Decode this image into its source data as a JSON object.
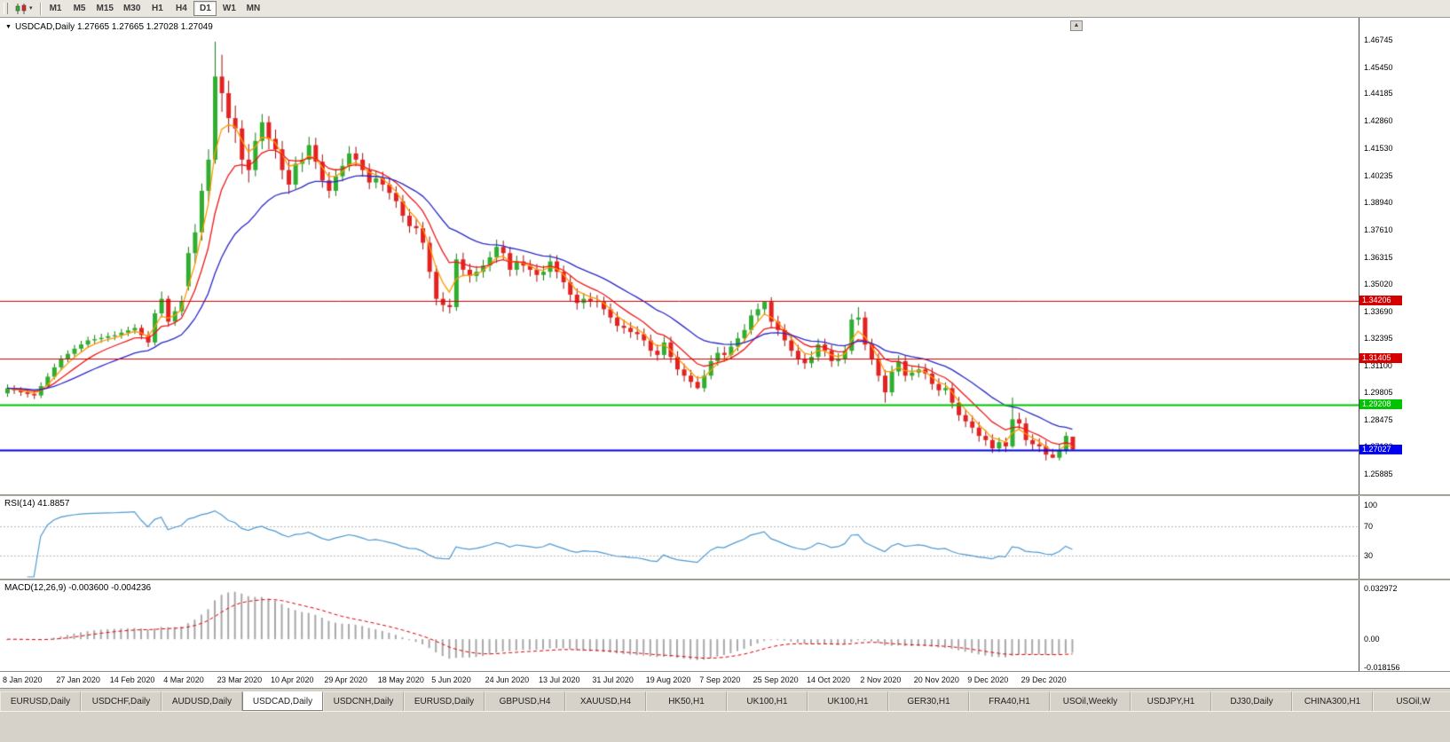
{
  "icons": {
    "dropdown_triangle": "▼",
    "caret_down": "▾",
    "scroll_up": "▲"
  },
  "toolbar": {
    "timeframes": [
      "M1",
      "M5",
      "M15",
      "M30",
      "H1",
      "H4",
      "D1",
      "W1",
      "MN"
    ],
    "active_timeframe": "D1"
  },
  "chart_header": {
    "title": "USDCAD,Daily 1.27665 1.27665 1.27028 1.27049"
  },
  "chart_data": {
    "type": "candlestick",
    "symbol": "USDCAD",
    "timeframe": "Daily",
    "last_ohlc": {
      "open": 1.27665,
      "high": 1.27665,
      "low": 1.27028,
      "close": 1.27049
    },
    "price_ticks": [
      "1.46745",
      "1.45450",
      "1.44185",
      "1.42860",
      "1.41530",
      "1.40235",
      "1.38940",
      "1.37610",
      "1.36315",
      "1.35020",
      "1.33690",
      "1.32395",
      "1.31100",
      "1.29805",
      "1.28475",
      "1.27180",
      "1.25885"
    ],
    "price_range": [
      1.251,
      1.4766
    ],
    "dates": [
      "8 Jan 2020",
      "27 Jan 2020",
      "14 Feb 2020",
      "4 Mar 2020",
      "23 Mar 2020",
      "10 Apr 2020",
      "29 Apr 2020",
      "18 May 2020",
      "5 Jun 2020",
      "24 Jun 2020",
      "13 Jul 2020",
      "31 Jul 2020",
      "19 Aug 2020",
      "7 Sep 2020",
      "25 Sep 2020",
      "14 Oct 2020",
      "2 Nov 2020",
      "20 Nov 2020",
      "9 Dec 2020",
      "29 Dec 2020"
    ],
    "colors": {
      "bull": "#2fae2f",
      "bear": "#e32222",
      "bull_wick": "#157a15",
      "bear_wick": "#9d0f0f"
    },
    "moving_averages": [
      {
        "name": "fast-ma",
        "period": 4,
        "color": "#ff9900"
      },
      {
        "name": "mid-ma",
        "period": 9,
        "color": "#f01818"
      },
      {
        "name": "slow-ma",
        "period": 21,
        "color": "#2a2ac8"
      }
    ],
    "horizontal_lines": [
      {
        "price": 1.34206,
        "label": "1.34206",
        "color": "#d40000",
        "width": 1
      },
      {
        "price": 1.31405,
        "label": "1.31405",
        "color": "#d40000",
        "width": 1
      },
      {
        "price": 1.29208,
        "label": "1.29208",
        "color": "#00c400",
        "width": 2
      },
      {
        "price": 1.27027,
        "label": "1.27027",
        "color": "#0000ee",
        "width": 2
      }
    ],
    "rsi": {
      "label": "RSI(14) 41.8857",
      "period": 14,
      "current": 41.8857,
      "levels": [
        "100",
        "70",
        "30"
      ],
      "level_values": [
        100,
        70,
        30
      ],
      "range": [
        0,
        110
      ],
      "color": "#4f9ad2"
    },
    "macd": {
      "label": "MACD(12,26,9) -0.003600 -0.004236",
      "fast": 12,
      "slow": 26,
      "signal_period": 9,
      "macd_value": -0.0036,
      "signal_value": -0.004236,
      "axis_labels": [
        "0.032972",
        "0.00",
        "-0.018156"
      ],
      "axis_values": [
        0.032972,
        0,
        -0.018156
      ],
      "range": [
        -0.0195,
        0.037
      ],
      "hist_color": "#a8a8a8",
      "signal_color": "#e00000"
    },
    "candles": [
      [
        1.2975,
        1.3018,
        1.2958,
        1.3
      ],
      [
        1.3,
        1.3014,
        1.2972,
        1.299
      ],
      [
        1.299,
        1.3005,
        1.2963,
        1.298
      ],
      [
        1.298,
        1.2995,
        1.2955,
        1.2972
      ],
      [
        1.2972,
        1.299,
        1.2948,
        1.2965
      ],
      [
        1.2965,
        1.3028,
        1.2952,
        1.301
      ],
      [
        1.301,
        1.3072,
        1.2998,
        1.3055
      ],
      [
        1.3055,
        1.3118,
        1.3042,
        1.31
      ],
      [
        1.31,
        1.3158,
        1.3088,
        1.314
      ],
      [
        1.314,
        1.3182,
        1.3125,
        1.3165
      ],
      [
        1.3165,
        1.3208,
        1.315,
        1.319
      ],
      [
        1.319,
        1.3228,
        1.3175,
        1.321
      ],
      [
        1.321,
        1.3248,
        1.3195,
        1.323
      ],
      [
        1.323,
        1.3256,
        1.3212,
        1.3236
      ],
      [
        1.3236,
        1.3262,
        1.3218,
        1.3242
      ],
      [
        1.3242,
        1.3268,
        1.3224,
        1.325
      ],
      [
        1.325,
        1.3274,
        1.3231,
        1.3255
      ],
      [
        1.3255,
        1.3285,
        1.3238,
        1.3267
      ],
      [
        1.3267,
        1.3296,
        1.325,
        1.3278
      ],
      [
        1.3278,
        1.3308,
        1.3261,
        1.329
      ],
      [
        1.329,
        1.3305,
        1.3235,
        1.3255
      ],
      [
        1.3255,
        1.3275,
        1.3198,
        1.322
      ],
      [
        1.322,
        1.3378,
        1.3205,
        1.336
      ],
      [
        1.336,
        1.3465,
        1.334,
        1.343
      ],
      [
        1.343,
        1.3445,
        1.3295,
        1.332
      ],
      [
        1.332,
        1.3392,
        1.33,
        1.337
      ],
      [
        1.337,
        1.3445,
        1.3348,
        1.342
      ],
      [
        1.349,
        1.368,
        1.347,
        1.365
      ],
      [
        1.365,
        1.379,
        1.36,
        1.375
      ],
      [
        1.375,
        1.3985,
        1.371,
        1.395
      ],
      [
        1.395,
        1.415,
        1.39,
        1.41
      ],
      [
        1.41,
        1.4668,
        1.408,
        1.45
      ],
      [
        1.45,
        1.4605,
        1.433,
        1.442
      ],
      [
        1.442,
        1.448,
        1.423,
        1.43
      ],
      [
        1.43,
        1.436,
        1.418,
        1.425
      ],
      [
        1.425,
        1.429,
        1.403,
        1.41
      ],
      [
        1.41,
        1.4175,
        1.399,
        1.405
      ],
      [
        1.405,
        1.423,
        1.402,
        1.419
      ],
      [
        1.419,
        1.432,
        1.415,
        1.428
      ],
      [
        1.428,
        1.431,
        1.415,
        1.42
      ],
      [
        1.42,
        1.4245,
        1.4105,
        1.415
      ],
      [
        1.415,
        1.419,
        1.4005,
        1.405
      ],
      [
        1.405,
        1.4095,
        1.3935,
        1.398
      ],
      [
        1.398,
        1.4115,
        1.3955,
        1.408
      ],
      [
        1.408,
        1.4135,
        1.404,
        1.41
      ],
      [
        1.41,
        1.421,
        1.4075,
        1.417
      ],
      [
        1.417,
        1.4205,
        1.4055,
        1.409
      ],
      [
        1.409,
        1.4125,
        1.3965,
        1.4
      ],
      [
        1.4,
        1.404,
        1.3915,
        1.395
      ],
      [
        1.395,
        1.4055,
        1.3925,
        1.402
      ],
      [
        1.402,
        1.4105,
        1.3995,
        1.407
      ],
      [
        1.407,
        1.4165,
        1.4045,
        1.413
      ],
      [
        1.413,
        1.4162,
        1.4068,
        1.41
      ],
      [
        1.41,
        1.4132,
        1.4018,
        1.405
      ],
      [
        1.405,
        1.4082,
        1.3958,
        1.399
      ],
      [
        1.399,
        1.4048,
        1.3962,
        1.401
      ],
      [
        1.401,
        1.4042,
        1.3948,
        1.398
      ],
      [
        1.398,
        1.4012,
        1.3908,
        1.394
      ],
      [
        1.394,
        1.3972,
        1.3868,
        1.39
      ],
      [
        1.39,
        1.393,
        1.3798,
        1.383
      ],
      [
        1.383,
        1.3862,
        1.3748,
        1.378
      ],
      [
        1.378,
        1.3815,
        1.374,
        1.377
      ],
      [
        1.377,
        1.38,
        1.3668,
        1.37
      ],
      [
        1.37,
        1.373,
        1.3528,
        1.356
      ],
      [
        1.356,
        1.359,
        1.3398,
        1.343
      ],
      [
        1.343,
        1.3462,
        1.3368,
        1.34
      ],
      [
        1.34,
        1.343,
        1.336,
        1.339
      ],
      [
        1.339,
        1.3648,
        1.3372,
        1.362
      ],
      [
        1.362,
        1.3652,
        1.3538,
        1.357
      ],
      [
        1.357,
        1.36,
        1.3508,
        1.354
      ],
      [
        1.354,
        1.3588,
        1.3512,
        1.356
      ],
      [
        1.356,
        1.3618,
        1.3532,
        1.359
      ],
      [
        1.359,
        1.3658,
        1.3562,
        1.363
      ],
      [
        1.363,
        1.3715,
        1.3602,
        1.368
      ],
      [
        1.368,
        1.371,
        1.3618,
        1.365
      ],
      [
        1.365,
        1.368,
        1.3538,
        1.357
      ],
      [
        1.357,
        1.3638,
        1.3542,
        1.361
      ],
      [
        1.361,
        1.364,
        1.3558,
        1.359
      ],
      [
        1.359,
        1.3618,
        1.3538,
        1.357
      ],
      [
        1.357,
        1.3598,
        1.3512,
        1.3545
      ],
      [
        1.3545,
        1.359,
        1.3518,
        1.356
      ],
      [
        1.356,
        1.3645,
        1.3532,
        1.361
      ],
      [
        1.361,
        1.364,
        1.3528,
        1.356
      ],
      [
        1.356,
        1.359,
        1.3478,
        1.351
      ],
      [
        1.351,
        1.354,
        1.3418,
        1.345
      ],
      [
        1.345,
        1.348,
        1.3378,
        1.341
      ],
      [
        1.341,
        1.3458,
        1.3382,
        1.343
      ],
      [
        1.343,
        1.346,
        1.339,
        1.342
      ],
      [
        1.342,
        1.3448,
        1.3388,
        1.3415
      ],
      [
        1.3415,
        1.344,
        1.3352,
        1.338
      ],
      [
        1.338,
        1.3408,
        1.3312,
        1.334
      ],
      [
        1.334,
        1.3368,
        1.3272,
        1.33
      ],
      [
        1.33,
        1.333,
        1.3262,
        1.329
      ],
      [
        1.329,
        1.3318,
        1.3242,
        1.327
      ],
      [
        1.327,
        1.3298,
        1.3232,
        1.326
      ],
      [
        1.326,
        1.3288,
        1.3202,
        1.323
      ],
      [
        1.323,
        1.3258,
        1.3152,
        1.318
      ],
      [
        1.318,
        1.321,
        1.3132,
        1.316
      ],
      [
        1.316,
        1.3248,
        1.314,
        1.322
      ],
      [
        1.322,
        1.3248,
        1.3122,
        1.315
      ],
      [
        1.315,
        1.3178,
        1.3062,
        1.309
      ],
      [
        1.309,
        1.3118,
        1.3032,
        1.306
      ],
      [
        1.306,
        1.3088,
        1.3002,
        1.303
      ],
      [
        1.303,
        1.3058,
        1.2994,
        1.3
      ],
      [
        1.3,
        1.3088,
        1.2982,
        1.306
      ],
      [
        1.306,
        1.3158,
        1.3042,
        1.313
      ],
      [
        1.313,
        1.3198,
        1.3108,
        1.317
      ],
      [
        1.317,
        1.32,
        1.3128,
        1.316
      ],
      [
        1.316,
        1.3228,
        1.3138,
        1.32
      ],
      [
        1.32,
        1.3268,
        1.3178,
        1.324
      ],
      [
        1.324,
        1.3308,
        1.3218,
        1.328
      ],
      [
        1.328,
        1.3378,
        1.3258,
        1.335
      ],
      [
        1.335,
        1.3408,
        1.3322,
        1.338
      ],
      [
        1.338,
        1.342,
        1.3352,
        1.3415
      ],
      [
        1.3415,
        1.3438,
        1.3292,
        1.332
      ],
      [
        1.332,
        1.3348,
        1.3252,
        1.328
      ],
      [
        1.328,
        1.3308,
        1.3202,
        1.323
      ],
      [
        1.323,
        1.3258,
        1.3152,
        1.318
      ],
      [
        1.318,
        1.3208,
        1.3112,
        1.314
      ],
      [
        1.314,
        1.3168,
        1.3092,
        1.312
      ],
      [
        1.312,
        1.3178,
        1.3098,
        1.315
      ],
      [
        1.315,
        1.3238,
        1.3128,
        1.321
      ],
      [
        1.321,
        1.3238,
        1.3152,
        1.318
      ],
      [
        1.318,
        1.3208,
        1.3102,
        1.313
      ],
      [
        1.313,
        1.3168,
        1.3105,
        1.314
      ],
      [
        1.314,
        1.3208,
        1.3118,
        1.318
      ],
      [
        1.318,
        1.3358,
        1.3162,
        1.333
      ],
      [
        1.333,
        1.339,
        1.3302,
        1.334
      ],
      [
        1.334,
        1.3368,
        1.3182,
        1.321
      ],
      [
        1.321,
        1.3238,
        1.3112,
        1.314
      ],
      [
        1.314,
        1.3168,
        1.3032,
        1.306
      ],
      [
        1.306,
        1.3088,
        1.293,
        1.298
      ],
      [
        1.298,
        1.3108,
        1.2962,
        1.308
      ],
      [
        1.308,
        1.3158,
        1.3058,
        1.313
      ],
      [
        1.313,
        1.3158,
        1.3032,
        1.306
      ],
      [
        1.306,
        1.3102,
        1.3038,
        1.3075
      ],
      [
        1.3075,
        1.3118,
        1.3052,
        1.309
      ],
      [
        1.309,
        1.3118,
        1.3042,
        1.307
      ],
      [
        1.307,
        1.3098,
        1.2992,
        1.302
      ],
      [
        1.302,
        1.3048,
        1.2962,
        1.299
      ],
      [
        1.299,
        1.3028,
        1.2968,
        1.3
      ],
      [
        1.3,
        1.3028,
        1.2902,
        1.293
      ],
      [
        1.293,
        1.2958,
        1.2842,
        1.287
      ],
      [
        1.287,
        1.2898,
        1.2812,
        1.284
      ],
      [
        1.284,
        1.2868,
        1.2782,
        1.281
      ],
      [
        1.281,
        1.2838,
        1.2742,
        1.277
      ],
      [
        1.277,
        1.2798,
        1.2722,
        1.275
      ],
      [
        1.275,
        1.2778,
        1.2688,
        1.271
      ],
      [
        1.271,
        1.2762,
        1.2692,
        1.274
      ],
      [
        1.274,
        1.2762,
        1.2692,
        1.272
      ],
      [
        1.272,
        1.2955,
        1.2712,
        1.285
      ],
      [
        1.285,
        1.2882,
        1.2802,
        1.283
      ],
      [
        1.283,
        1.2858,
        1.2722,
        1.275
      ],
      [
        1.275,
        1.2778,
        1.2702,
        1.273
      ],
      [
        1.273,
        1.2758,
        1.2692,
        1.272
      ],
      [
        1.272,
        1.2748,
        1.2652,
        1.268
      ],
      [
        1.268,
        1.2708,
        1.2663,
        1.2665
      ],
      [
        1.2665,
        1.2728,
        1.2652,
        1.27
      ],
      [
        1.27,
        1.2788,
        1.2682,
        1.277
      ],
      [
        1.27665,
        1.27665,
        1.27028,
        1.27049
      ]
    ]
  },
  "tabs": {
    "active_index": 3,
    "items": [
      "EURUSD,Daily",
      "USDCHF,Daily",
      "AUDUSD,Daily",
      "USDCAD,Daily",
      "USDCNH,Daily",
      "EURUSD,Daily",
      "GBPUSD,H4",
      "XAUUSD,H4",
      "HK50,H1",
      "UK100,H1",
      "UK100,H1",
      "GER30,H1",
      "FRA40,H1",
      "USOil,Weekly",
      "USDJPY,H1",
      "DJ30,Daily",
      "CHINA300,H1",
      "USOil,W"
    ]
  }
}
